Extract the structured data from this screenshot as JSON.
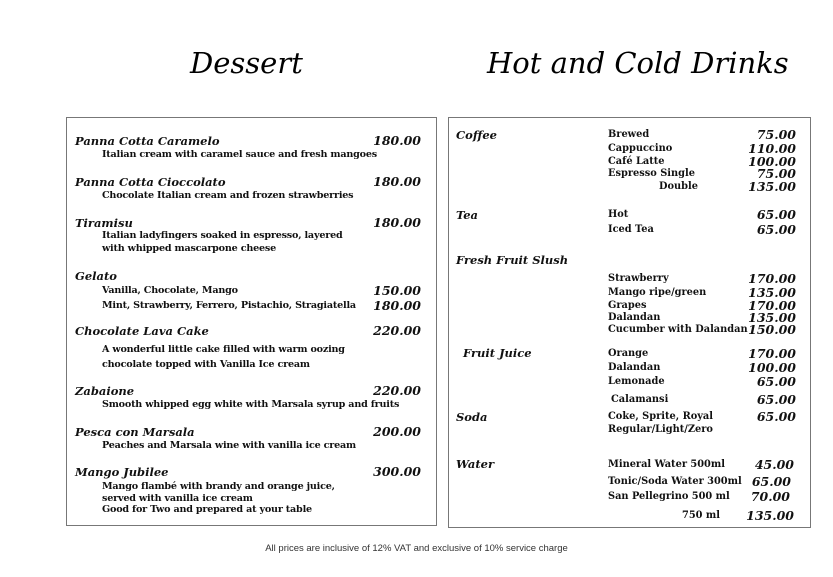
{
  "dessert": {
    "title": "Dessert",
    "items": [
      {
        "name": "Panna Cotta Caramelo",
        "price": "180.00",
        "desc": [
          "Italian cream with caramel sauce and fresh mangoes"
        ]
      },
      {
        "name": "Panna Cotta Cioccolato",
        "price": "180.00",
        "desc": [
          "Chocolate Italian cream and frozen strawberries"
        ]
      },
      {
        "name": "Tiramisu",
        "price": "180.00",
        "desc": [
          "Italian ladyfingers soaked in espresso, layered",
          "with whipped mascarpone cheese"
        ]
      },
      {
        "name": "Gelato",
        "price": "",
        "desc": [],
        "options": [
          {
            "label": "Vanilla, Chocolate, Mango",
            "price": "150.00"
          },
          {
            "label": "Mint, Strawberry, Ferrero, Pistachio, Stragiatella",
            "price": "180.00"
          }
        ]
      },
      {
        "name": "Chocolate Lava Cake",
        "price": "220.00",
        "desc": [
          "A wonderful little cake filled with warm oozing",
          "chocolate topped with Vanilla Ice cream"
        ]
      },
      {
        "name": "Zabaione",
        "price": "220.00",
        "desc": [
          "Smooth whipped egg white with Marsala syrup and fruits"
        ]
      },
      {
        "name": "Pesca con Marsala",
        "price": "200.00",
        "desc": [
          "Peaches and Marsala wine with vanilla ice cream"
        ]
      },
      {
        "name": "Mango Jubilee",
        "price": "300.00",
        "desc": [
          "Mango flambé with brandy and orange juice,",
          "served with vanilla ice cream",
          "Good for Two and prepared at your table"
        ]
      }
    ]
  },
  "drinks": {
    "title": "Hot and Cold Drinks",
    "categories": [
      {
        "name": "Coffee",
        "items": [
          {
            "label": "Brewed",
            "price": "75.00"
          },
          {
            "label": "Cappuccino",
            "price": "110.00"
          },
          {
            "label": "Café Latte",
            "price": "100.00"
          },
          {
            "label": "Espresso  Single",
            "price": "75.00"
          },
          {
            "label": "Double",
            "price": "135.00"
          }
        ]
      },
      {
        "name": "Tea",
        "items": [
          {
            "label": "Hot",
            "price": "65.00"
          },
          {
            "label": "Iced Tea",
            "price": "65.00"
          }
        ]
      },
      {
        "name": "Fresh Fruit Slush",
        "items": [
          {
            "label": "Strawberry",
            "price": "170.00"
          },
          {
            "label": "Mango ripe/green",
            "price": "135.00"
          },
          {
            "label": "Grapes",
            "price": "170.00"
          },
          {
            "label": "Dalandan",
            "price": "135.00"
          },
          {
            "label": "Cucumber with Dalandan",
            "price": "150.00"
          }
        ]
      },
      {
        "name": "Fruit Juice",
        "items": [
          {
            "label": "Orange",
            "price": "170.00"
          },
          {
            "label": "Dalandan",
            "price": "100.00"
          },
          {
            "label": "Lemonade",
            "price": "65.00"
          },
          {
            "label": "Calamansi",
            "price": "65.00"
          }
        ]
      },
      {
        "name": "Soda",
        "items": [
          {
            "label": "Coke, Sprite, Royal",
            "price": "65.00"
          },
          {
            "label": "Regular/Light/Zero",
            "price": ""
          }
        ]
      },
      {
        "name": "Water",
        "items": [
          {
            "label": "Mineral Water  500ml",
            "price": "45.00"
          },
          {
            "label": "Tonic/Soda Water 300ml",
            "price": "65.00"
          },
          {
            "label": "San Pellegrino 500 ml",
            "price": "70.00"
          },
          {
            "label": "750 ml",
            "price": "135.00"
          }
        ]
      }
    ]
  },
  "footer": "All prices are inclusive of 12% VAT and exclusive of 10% service charge"
}
